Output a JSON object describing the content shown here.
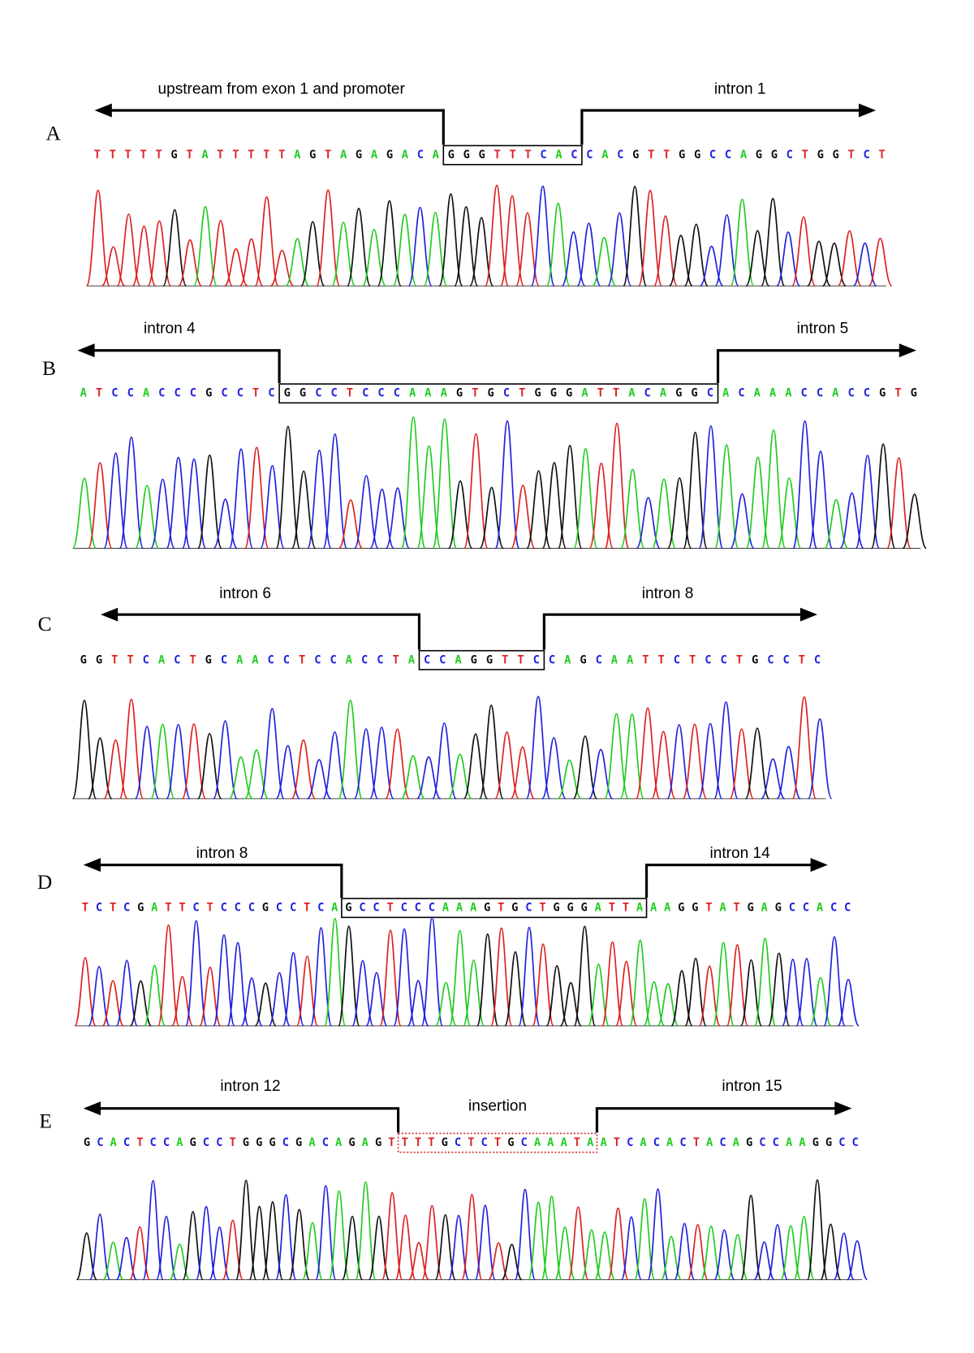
{
  "panels": [
    {
      "label": "A",
      "left_label": "upstream from exon 1 and promoter",
      "right_label": "intron 1",
      "sequence": {
        "left": "TTTTTGTATTTTTAGTAGAGACA",
        "boxed": "GGGTTTCAC",
        "right": "CACGTTGGCCAGGCTGGTCT"
      }
    },
    {
      "label": "B",
      "left_label": "intron 4",
      "right_label": "intron 5",
      "sequence": {
        "left": "ATCCACCCGCCTC",
        "boxed": "GGCCTCCCAAAGTGCTGGGATTACAGGC",
        "right": "ACAAACCACCGTG"
      }
    },
    {
      "label": "C",
      "left_label": "intron 6",
      "right_label": "intron 8",
      "sequence": {
        "left": "GGTTCACTGCAACCTCCACCTA",
        "boxed": "CCAGGTTC",
        "right": "CAGCAATTCTCCTGCCTC"
      }
    },
    {
      "label": "D",
      "left_label": "intron 8",
      "right_label": "intron 14",
      "sequence": {
        "left": "TCTCGATTCTCCCGCCTCA",
        "boxed": "GCCTCCCAAAGTGCTGGGATTA",
        "right": "AAGGTATGAGCCACC"
      }
    },
    {
      "label": "E",
      "left_label": "intron 12",
      "middle_label": "insertion",
      "right_label": "intron 15",
      "sequence": {
        "left": "GCACTCCAGCCTGGGCGACAGAGT",
        "boxed": "TTTGCTCTGCAAATA",
        "right": "ATCACACTACAGCCAAGGCC"
      }
    }
  ]
}
